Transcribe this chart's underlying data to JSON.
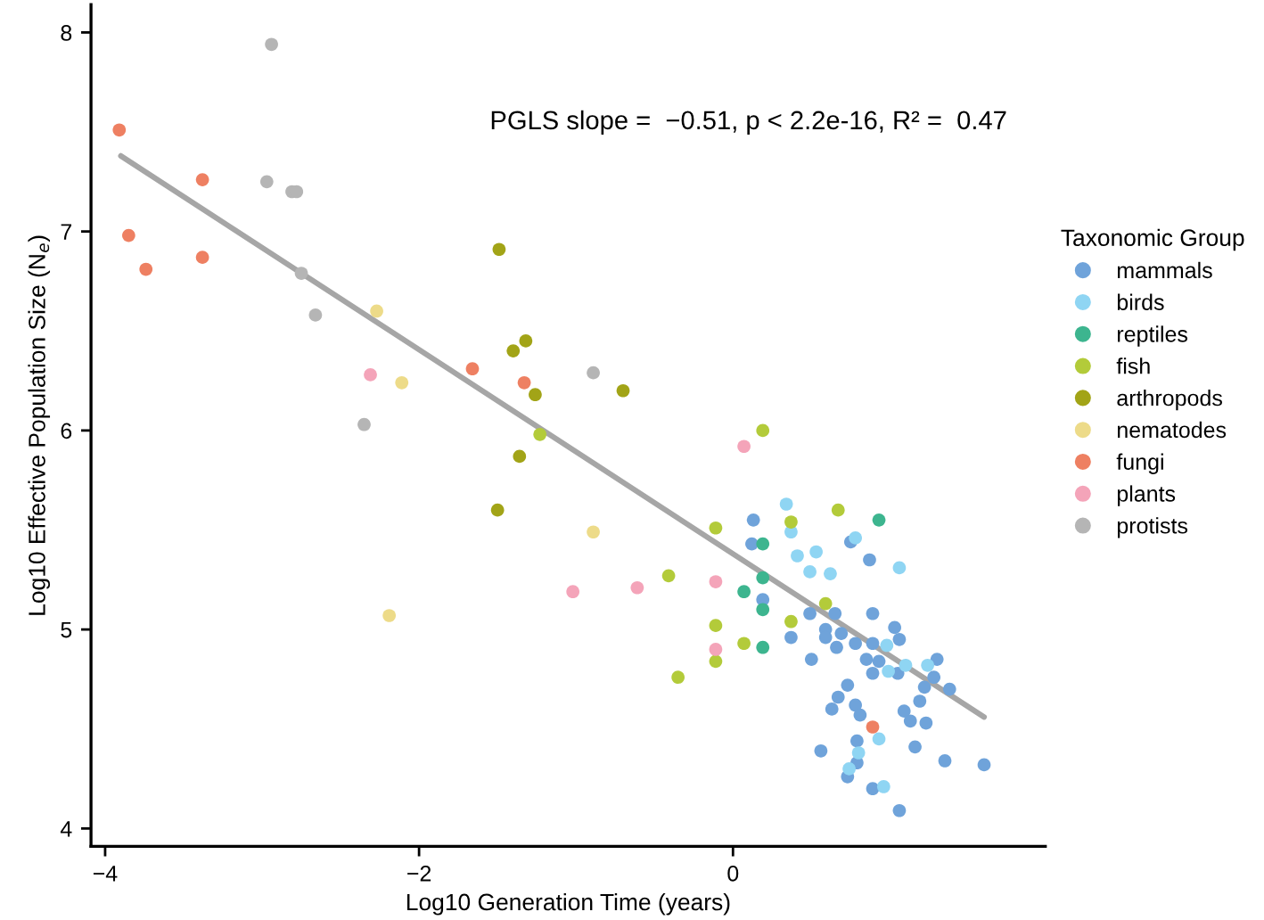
{
  "chart_data": {
    "type": "scatter",
    "xlabel": "Log10 Generation Time (years)",
    "ylabel": "Log10 Effective Population Size (N$_{e}$)",
    "legend_title": "Taxonomic Group",
    "legend": "right",
    "grid": false,
    "marker": "circle",
    "annotations": [
      "PGLS slope =  −0.51, p < 2.2e-16, R² =  0.47"
    ],
    "xlim": [
      -4.09,
      1.99
    ],
    "xticks": [
      {
        "value": -4,
        "label": "−4"
      },
      {
        "value": -2,
        "label": "−2"
      },
      0
    ],
    "ylim": [
      3.91,
      8.14
    ],
    "yticks": [
      4,
      5,
      6,
      7,
      8
    ],
    "series": [
      {
        "name": "mammals",
        "color": "#6fa3da",
        "x": [
          0.13,
          0.12,
          0.75,
          0.87,
          0.19,
          0.37,
          0.49,
          0.59,
          0.59,
          0.65,
          0.69,
          0.66,
          0.78,
          0.89,
          0.89,
          0.85,
          0.93,
          0.89,
          1.03,
          1.06,
          1.05,
          0.5,
          1.3,
          1.28,
          1.22,
          1.38,
          0.73,
          0.67,
          0.63,
          0.78,
          0.81,
          1.09,
          1.13,
          1.19,
          1.23,
          0.79,
          1.16,
          0.56,
          0.79,
          0.73,
          0.89,
          1.06,
          1.35,
          1.6
        ],
        "values": [
          5.55,
          5.43,
          5.44,
          5.35,
          5.15,
          4.96,
          5.08,
          5.0,
          4.96,
          5.08,
          4.98,
          4.91,
          4.93,
          5.08,
          4.93,
          4.85,
          4.84,
          4.78,
          5.01,
          4.95,
          4.78,
          4.85,
          4.85,
          4.76,
          4.71,
          4.7,
          4.72,
          4.66,
          4.6,
          4.62,
          4.57,
          4.59,
          4.54,
          4.64,
          4.53,
          4.44,
          4.41,
          4.39,
          4.33,
          4.26,
          4.2,
          4.09,
          4.34,
          4.32
        ]
      },
      {
        "name": "birds",
        "color": "#8fd5f3",
        "x": [
          0.34,
          0.37,
          0.41,
          0.53,
          0.49,
          0.62,
          0.78,
          1.06,
          0.98,
          0.99,
          1.1,
          1.24,
          0.93,
          0.8,
          0.74,
          0.96
        ],
        "values": [
          5.63,
          5.49,
          5.37,
          5.39,
          5.29,
          5.28,
          5.46,
          5.31,
          4.92,
          4.79,
          4.82,
          4.82,
          4.45,
          4.38,
          4.3,
          4.21
        ]
      },
      {
        "name": "reptiles",
        "color": "#3db58f",
        "x": [
          0.93,
          0.19,
          0.07,
          0.19,
          0.19,
          0.19
        ],
        "values": [
          5.55,
          5.43,
          5.19,
          5.1,
          4.91,
          5.26
        ]
      },
      {
        "name": "fish",
        "color": "#b3cb3a",
        "x": [
          -0.41,
          -0.35,
          -0.11,
          -0.11,
          -0.11,
          0.07,
          0.37,
          0.37,
          0.67,
          0.59,
          0.19,
          -1.23
        ],
        "values": [
          5.27,
          4.76,
          5.51,
          5.02,
          4.84,
          4.93,
          5.54,
          5.04,
          5.6,
          5.13,
          6.0,
          5.98
        ]
      },
      {
        "name": "arthropods",
        "color": "#a2a417",
        "x": [
          -1.49,
          -1.4,
          -1.32,
          -1.26,
          -0.7,
          -1.36,
          -1.5
        ],
        "values": [
          6.91,
          6.4,
          6.45,
          6.18,
          6.2,
          5.87,
          5.6
        ]
      },
      {
        "name": "nematodes",
        "color": "#eddb89",
        "x": [
          -2.27,
          -2.11,
          -0.89,
          -2.19
        ],
        "values": [
          6.6,
          6.24,
          5.49,
          5.07
        ]
      },
      {
        "name": "fungi",
        "color": "#ee8062",
        "x": [
          -3.91,
          -3.85,
          -3.74,
          -3.38,
          -3.38,
          -1.66,
          -1.33,
          0.89
        ],
        "values": [
          7.51,
          6.98,
          6.81,
          7.26,
          6.87,
          6.31,
          6.24,
          4.51
        ]
      },
      {
        "name": "plants",
        "color": "#f4a4b9",
        "x": [
          -2.31,
          -1.02,
          -0.61,
          0.07,
          -0.11,
          -0.11
        ],
        "values": [
          6.28,
          5.19,
          5.21,
          5.92,
          5.24,
          4.9
        ]
      },
      {
        "name": "protists",
        "color": "#b5b5b5",
        "x": [
          -2.94,
          -2.97,
          -2.81,
          -2.78,
          -2.75,
          -2.66,
          -0.89,
          -2.35
        ],
        "values": [
          7.94,
          7.25,
          7.2,
          7.2,
          6.79,
          6.58,
          6.29,
          6.03
        ]
      },
      {
        "type": "line",
        "marker": "none",
        "color": "#a6a6a6",
        "line_style": "solid",
        "x": [
          -3.9,
          1.6
        ],
        "values": [
          7.38,
          4.56
        ]
      }
    ]
  }
}
